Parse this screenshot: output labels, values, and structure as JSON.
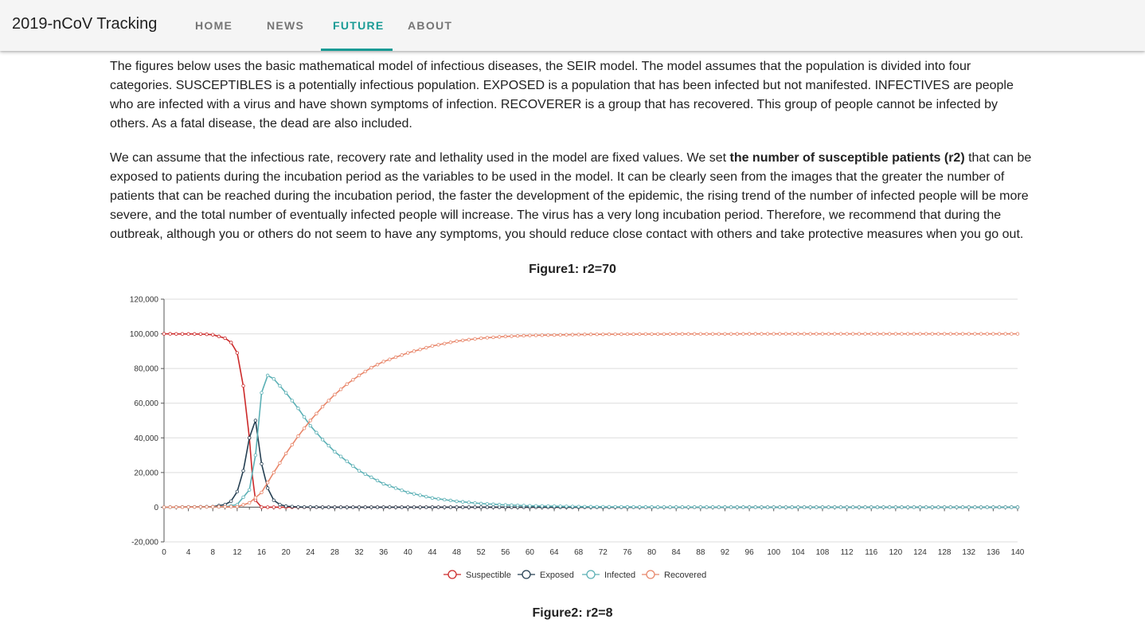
{
  "app": {
    "title": "2019-nCoV Tracking"
  },
  "nav": {
    "tabs": [
      {
        "label": "HOME",
        "active": false
      },
      {
        "label": "NEWS",
        "active": false
      },
      {
        "label": "FUTURE",
        "active": true
      },
      {
        "label": "ABOUT",
        "active": false
      }
    ]
  },
  "content": {
    "para1": "The figures below uses the basic mathematical model of infectious diseases, the SEIR model. The model assumes that the population is divided into four categories. SUSCEPTIBLES is a potentially infectious population. EXPOSED is a population that has been infected but not manifested. INFECTIVES are people who are infected with a virus and have shown symptoms of infection. RECOVERER is a group that has recovered. This group of people cannot be infected by others. As a fatal disease, the dead are also included.",
    "para2_before": "We can assume that the infectious rate, recovery rate and lethality used in the model are fixed values. We set ",
    "para2_bold": "the number of susceptible patients (r2)",
    "para2_after": " that can be exposed to patients during the incubation period as the variables to be used in the model. It can be clearly seen from the images that the greater the number of patients that can be reached during the incubation period, the faster the development of the epidemic, the rising trend of the number of infected people will be more severe, and the total number of eventually infected people will increase. The virus has a very long incubation period. Therefore, we recommend that during the outbreak, although you or others do not seem to have any symptoms, you should reduce close contact with others and take protective measures when you go out.",
    "figure1_title": "Figure1: r2=70",
    "figure2_title": "Figure2: r2=8"
  },
  "colors": {
    "accent": "#1a9b95",
    "susceptible": "#cc2a2a",
    "exposed": "#253f52",
    "infected": "#5bb0b5",
    "recovered": "#e8866a"
  },
  "chart_data": {
    "type": "line",
    "xlim": [
      0,
      140
    ],
    "ylim": [
      -20000,
      120000
    ],
    "x_ticks": [
      0,
      4,
      8,
      12,
      16,
      20,
      24,
      28,
      32,
      36,
      40,
      44,
      48,
      52,
      56,
      60,
      64,
      68,
      72,
      76,
      80,
      84,
      88,
      92,
      96,
      100,
      104,
      108,
      112,
      116,
      120,
      124,
      128,
      132,
      136,
      140
    ],
    "y_ticks": [
      -20000,
      0,
      20000,
      40000,
      60000,
      80000,
      100000,
      120000
    ],
    "y_tick_labels": [
      "-20,000",
      "0",
      "20,000",
      "40,000",
      "60,000",
      "80,000",
      "100,000",
      "120,000"
    ],
    "legend_position": "bottom",
    "grid": true,
    "series": [
      {
        "name": "Suspectible",
        "color_key": "susceptible",
        "points": [
          [
            0,
            100000
          ],
          [
            6,
            99900
          ],
          [
            8,
            99500
          ],
          [
            10,
            97500
          ],
          [
            11,
            95000
          ],
          [
            12,
            89000
          ],
          [
            13,
            70000
          ],
          [
            14,
            40000
          ],
          [
            14.5,
            18000
          ],
          [
            15,
            4000
          ],
          [
            16,
            0
          ],
          [
            140,
            0
          ]
        ]
      },
      {
        "name": "Exposed",
        "color_key": "exposed",
        "points": [
          [
            0,
            0
          ],
          [
            8,
            300
          ],
          [
            10,
            1500
          ],
          [
            11,
            3500
          ],
          [
            12,
            9000
          ],
          [
            13,
            21000
          ],
          [
            14,
            40000
          ],
          [
            15,
            50000
          ],
          [
            16,
            25000
          ],
          [
            17,
            11000
          ],
          [
            18,
            4000
          ],
          [
            19,
            1500
          ],
          [
            20,
            600
          ],
          [
            22,
            100
          ],
          [
            26,
            0
          ],
          [
            140,
            0
          ]
        ]
      },
      {
        "name": "Infected",
        "color_key": "infected",
        "points": [
          [
            0,
            0
          ],
          [
            10,
            200
          ],
          [
            12,
            1500
          ],
          [
            14,
            10000
          ],
          [
            15,
            30000
          ],
          [
            16,
            66000
          ],
          [
            17,
            76000
          ],
          [
            18,
            74000
          ],
          [
            20,
            66000
          ],
          [
            22,
            57000
          ],
          [
            24,
            47000
          ],
          [
            26,
            39000
          ],
          [
            28,
            32000
          ],
          [
            32,
            21000
          ],
          [
            36,
            13500
          ],
          [
            40,
            8500
          ],
          [
            44,
            5300
          ],
          [
            48,
            3400
          ],
          [
            52,
            2100
          ],
          [
            56,
            1300
          ],
          [
            60,
            800
          ],
          [
            70,
            250
          ],
          [
            80,
            80
          ],
          [
            100,
            10
          ],
          [
            140,
            0
          ]
        ]
      },
      {
        "name": "Recovered",
        "color_key": "recovered",
        "points": [
          [
            0,
            0
          ],
          [
            12,
            300
          ],
          [
            14,
            2500
          ],
          [
            16,
            8500
          ],
          [
            18,
            20000
          ],
          [
            20,
            31000
          ],
          [
            22,
            41000
          ],
          [
            24,
            50000
          ],
          [
            26,
            58000
          ],
          [
            28,
            65000
          ],
          [
            30,
            71000
          ],
          [
            32,
            76000
          ],
          [
            34,
            80500
          ],
          [
            36,
            84000
          ],
          [
            40,
            89000
          ],
          [
            44,
            93000
          ],
          [
            48,
            95800
          ],
          [
            52,
            97500
          ],
          [
            56,
            98500
          ],
          [
            60,
            99100
          ],
          [
            70,
            99700
          ],
          [
            80,
            99900
          ],
          [
            100,
            100000
          ],
          [
            140,
            100000
          ]
        ]
      }
    ]
  }
}
